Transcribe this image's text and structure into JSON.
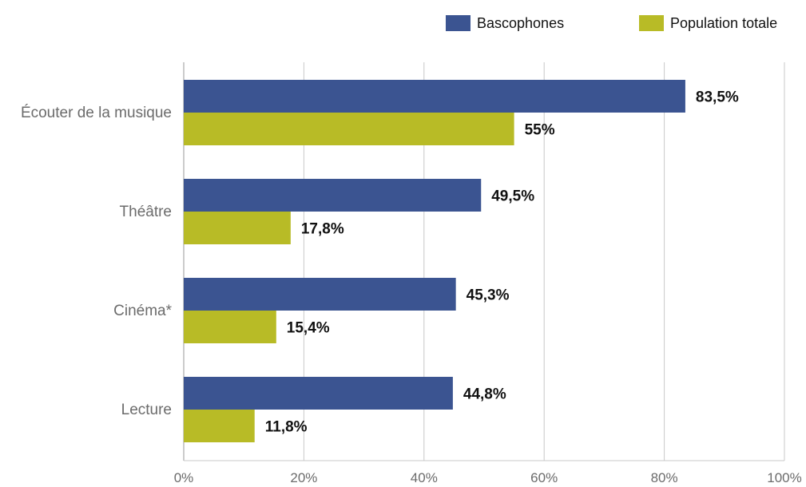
{
  "chart_data": {
    "type": "bar",
    "orientation": "horizontal",
    "categories": [
      "Écouter de la musique",
      "Théâtre",
      "Cinéma*",
      "Lecture"
    ],
    "series": [
      {
        "name": "Bascophones",
        "color": "#3b5491",
        "values": [
          83.5,
          49.5,
          45.3,
          44.8
        ],
        "labels": [
          "83,5%",
          "49,5%",
          "45,3%",
          "44,8%"
        ]
      },
      {
        "name": "Population totale",
        "color": "#b8bb26",
        "values": [
          55,
          17.8,
          15.4,
          11.8
        ],
        "labels": [
          "55%",
          "17,8%",
          "15,4%",
          "11,8%"
        ]
      }
    ],
    "xlim": [
      0,
      100
    ],
    "xticks": [
      0,
      20,
      40,
      60,
      80,
      100
    ],
    "xtick_labels": [
      "0%",
      "20%",
      "40%",
      "60%",
      "80%",
      "100%"
    ],
    "grid": "vertical",
    "legend_position": "top-right"
  }
}
